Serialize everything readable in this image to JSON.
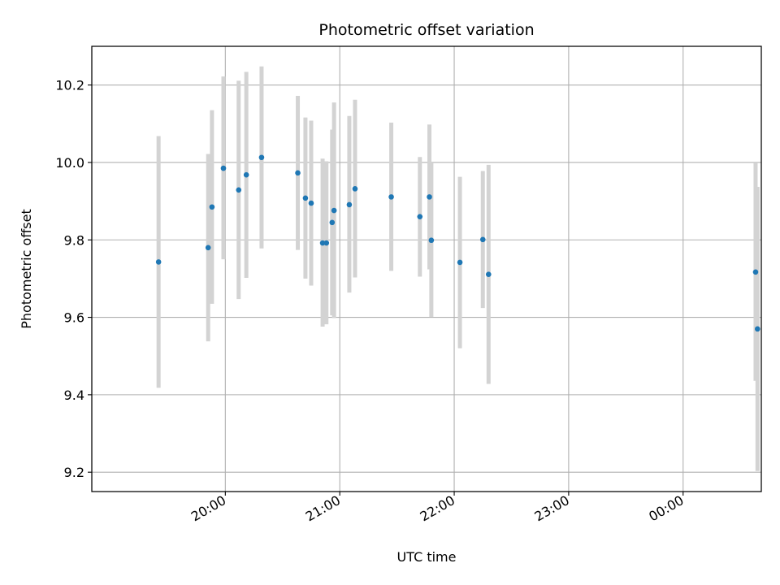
{
  "chart_data": {
    "type": "scatter",
    "title": "Photometric offset variation",
    "xlabel": "UTC time",
    "ylabel": "Photometric offset",
    "x_axis": "time",
    "x_ticks": [
      "20:00",
      "21:00",
      "22:00",
      "23:00",
      "00:00"
    ],
    "x_tick_minutes": [
      1200,
      1260,
      1320,
      1380,
      1440
    ],
    "xlim_minutes": [
      1130,
      1481
    ],
    "ylim": [
      9.15,
      10.3
    ],
    "y_ticks": [
      9.2,
      9.4,
      9.6,
      9.8,
      10.0,
      10.2
    ],
    "y_tick_labels": [
      "9.2",
      "9.4",
      "9.6",
      "9.8",
      "10.0",
      "10.2"
    ],
    "grid": true,
    "colors": {
      "marker": "#1f77b4",
      "errorbar": "#d3d3d3",
      "grid": "#b0b0b0"
    },
    "points": [
      {
        "time": "19:25",
        "y": 9.743,
        "ylow": 9.418,
        "yhigh": 10.068
      },
      {
        "time": "19:51",
        "y": 9.78,
        "ylow": 9.538,
        "yhigh": 10.022
      },
      {
        "time": "19:53",
        "y": 9.885,
        "ylow": 9.635,
        "yhigh": 10.135
      },
      {
        "time": "19:59",
        "y": 9.985,
        "ylow": 9.75,
        "yhigh": 10.222
      },
      {
        "time": "20:07",
        "y": 9.929,
        "ylow": 9.647,
        "yhigh": 10.211
      },
      {
        "time": "20:11",
        "y": 9.968,
        "ylow": 9.702,
        "yhigh": 10.234
      },
      {
        "time": "20:19",
        "y": 10.013,
        "ylow": 9.778,
        "yhigh": 10.248
      },
      {
        "time": "20:38",
        "y": 9.973,
        "ylow": 9.774,
        "yhigh": 10.172
      },
      {
        "time": "20:42",
        "y": 9.908,
        "ylow": 9.7,
        "yhigh": 10.116
      },
      {
        "time": "20:45",
        "y": 9.895,
        "ylow": 9.682,
        "yhigh": 10.108
      },
      {
        "time": "20:51",
        "y": 9.792,
        "ylow": 9.576,
        "yhigh": 10.01
      },
      {
        "time": "20:53",
        "y": 9.792,
        "ylow": 9.582,
        "yhigh": 10.003
      },
      {
        "time": "20:56",
        "y": 9.845,
        "ylow": 9.605,
        "yhigh": 10.085
      },
      {
        "time": "20:57",
        "y": 9.876,
        "ylow": 9.598,
        "yhigh": 10.155
      },
      {
        "time": "21:05",
        "y": 9.891,
        "ylow": 9.664,
        "yhigh": 10.12
      },
      {
        "time": "21:08",
        "y": 9.932,
        "ylow": 9.703,
        "yhigh": 10.162
      },
      {
        "time": "21:27",
        "y": 9.911,
        "ylow": 9.72,
        "yhigh": 10.103
      },
      {
        "time": "21:42",
        "y": 9.86,
        "ylow": 9.705,
        "yhigh": 10.014
      },
      {
        "time": "21:47",
        "y": 9.911,
        "ylow": 9.724,
        "yhigh": 10.098
      },
      {
        "time": "21:48",
        "y": 9.799,
        "ylow": 9.601,
        "yhigh": 10.0
      },
      {
        "time": "22:03",
        "y": 9.742,
        "ylow": 9.52,
        "yhigh": 9.963
      },
      {
        "time": "22:15",
        "y": 9.801,
        "ylow": 9.624,
        "yhigh": 9.978
      },
      {
        "time": "22:18",
        "y": 9.711,
        "ylow": 9.428,
        "yhigh": 9.994
      },
      {
        "time": "00:38",
        "y": 9.717,
        "ylow": 9.436,
        "yhigh": 9.998
      },
      {
        "time": "00:39",
        "y": 9.57,
        "ylow": 9.203,
        "yhigh": 9.937
      }
    ]
  }
}
